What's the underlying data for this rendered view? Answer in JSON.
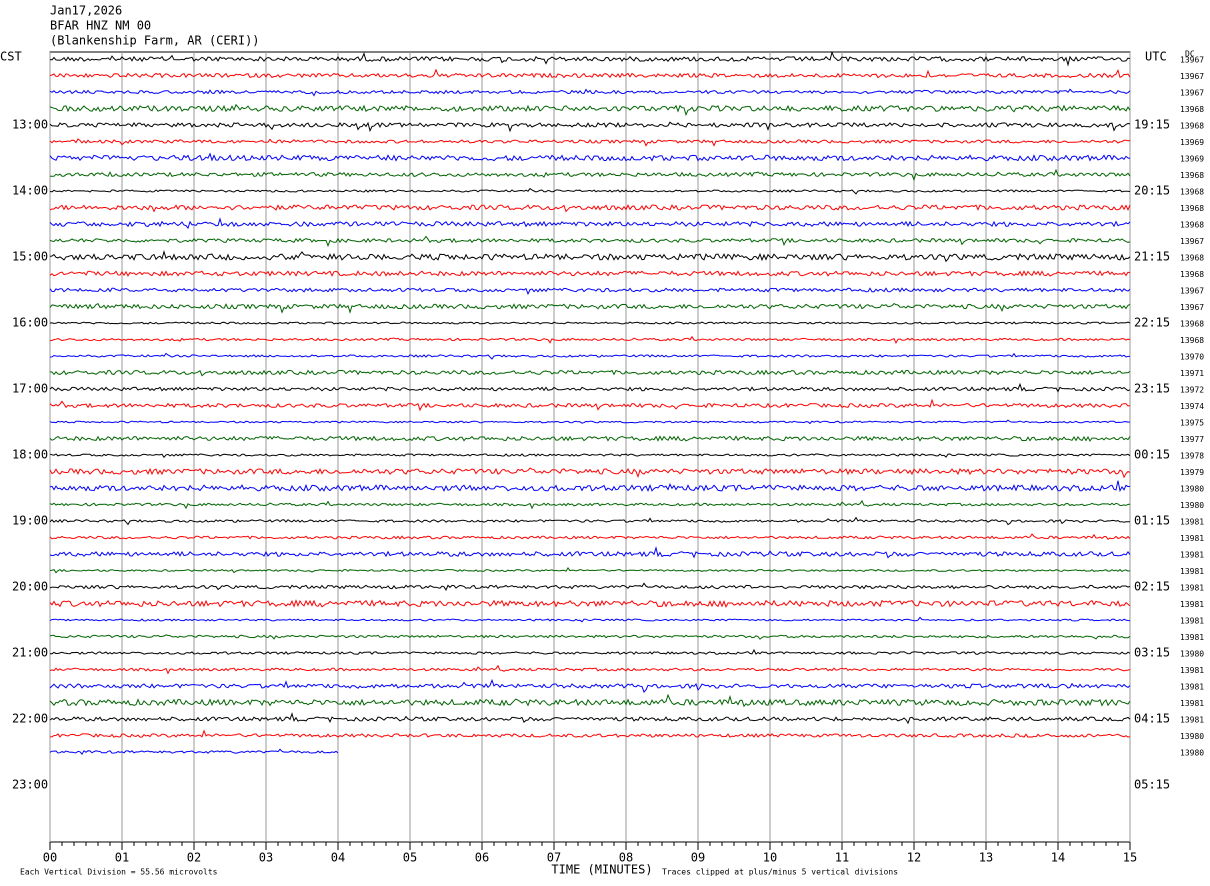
{
  "chart_data": {
    "type": "helicorder",
    "header": [
      "Jan17,2026",
      "BFAR HNZ NM 00",
      "(Blankenship Farm, AR (CERI))"
    ],
    "left_zone": "CST",
    "right_zone": "UTC",
    "dc_header": "DC",
    "left_times": [
      "13:00",
      "14:00",
      "15:00",
      "16:00",
      "17:00",
      "18:00",
      "19:00",
      "20:00",
      "21:00",
      "22:00",
      "23:00"
    ],
    "right_times": [
      "19:15",
      "20:15",
      "21:15",
      "22:15",
      "23:15",
      "00:15",
      "01:15",
      "02:15",
      "03:15",
      "04:15",
      "05:15"
    ],
    "dc_offsets": [
      13967,
      13967,
      13967,
      13968,
      13968,
      13969,
      13969,
      13968,
      13968,
      13968,
      13968,
      13967,
      13968,
      13968,
      13967,
      13967,
      13968,
      13968,
      13970,
      13971,
      13972,
      13974,
      13975,
      13977,
      13978,
      13979,
      13980,
      13980,
      13981,
      13981,
      13981,
      13981,
      13981,
      13981,
      13981,
      13981,
      13980,
      13981,
      13981,
      13981,
      13981,
      13980,
      13980
    ],
    "xlim": [
      0,
      15
    ],
    "xticks": [
      {
        "value": 0,
        "label": "00"
      },
      {
        "value": 1,
        "label": "01"
      },
      {
        "value": 2,
        "label": "02"
      },
      {
        "value": 3,
        "label": "03"
      },
      {
        "value": 4,
        "label": "04"
      },
      {
        "value": 5,
        "label": "05"
      },
      {
        "value": 6,
        "label": "06"
      },
      {
        "value": 7,
        "label": "07"
      },
      {
        "value": 8,
        "label": "08"
      },
      {
        "value": 9,
        "label": "09"
      },
      10,
      11,
      12,
      13,
      14,
      15
    ],
    "xlabel": "TIME (MINUTES)",
    "footer_left": "Each Vertical Division =   55.56 microvolts",
    "footer_right": "Traces clipped at plus/minus 5 vertical divisions"
  }
}
